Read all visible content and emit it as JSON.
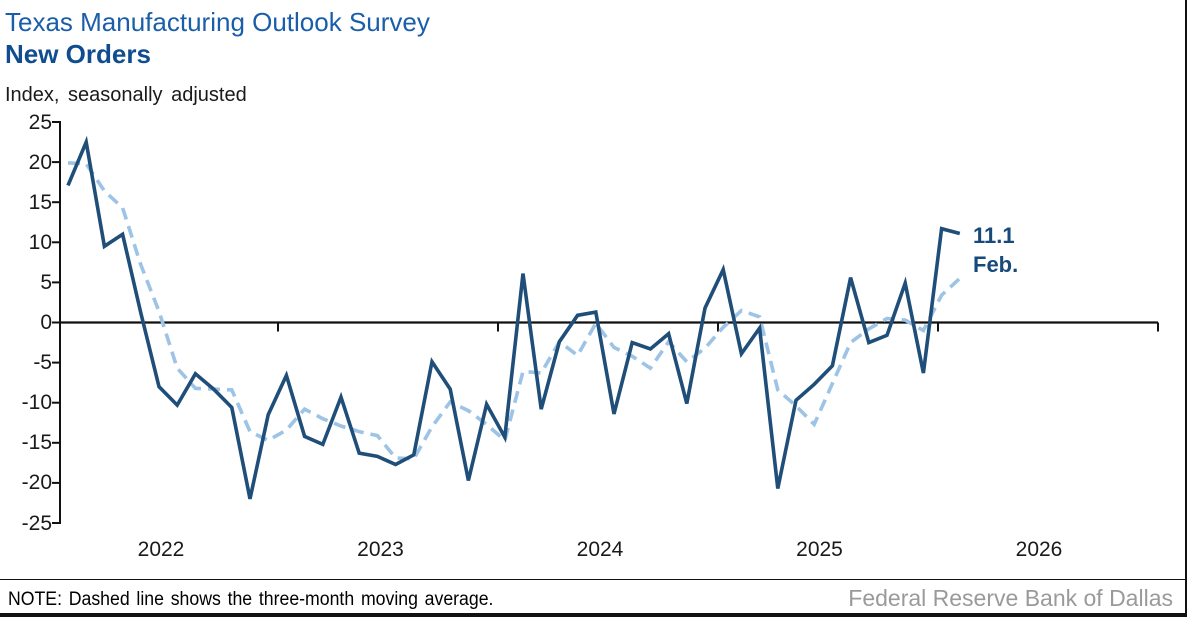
{
  "header": {
    "title": "Texas Manufacturing Outlook Survey",
    "subtitle": "New Orders",
    "unit_label": "Index, seasonally adjusted"
  },
  "annotation": {
    "value": "11.1",
    "month": "Feb."
  },
  "footer": {
    "note": "NOTE: Dashed line shows the three-month moving average.",
    "attribution": "Federal Reserve Bank of Dallas"
  },
  "colors": {
    "title_blue": "#1a5ea9",
    "subtitle_navy": "#0f4d8e",
    "monthly_line_navy": "#1f4e79",
    "moving_average_light_blue": "#9dc3e6",
    "axis_black": "#111111",
    "attribution_gray": "#9a9a9a"
  },
  "chart_data": {
    "type": "line",
    "title": "Texas Manufacturing Outlook Survey — New Orders",
    "ylabel": "Index, seasonally adjusted",
    "ylim": [
      -25,
      25
    ],
    "y_ticks": [
      25,
      20,
      15,
      10,
      5,
      0,
      -5,
      -10,
      -15,
      -20,
      -25
    ],
    "x_tick_labels": [
      "2022",
      "2023",
      "2024",
      "2025",
      "2026"
    ],
    "x_start_month": "Jan 2022",
    "x_end_month": "Feb 2026",
    "frequency": "monthly",
    "grid": false,
    "legend_position": "none (explained in footer note)",
    "latest_point": {
      "label": "Feb.",
      "value": 11.1
    },
    "series": [
      {
        "name": "New orders index (monthly)",
        "style": "solid",
        "color": "#1f4e79",
        "values": [
          17.1,
          22.5,
          9.5,
          11.0,
          1.2,
          -8.0,
          -10.3,
          -6.4,
          -8.3,
          -10.6,
          -22.0,
          -11.5,
          -6.6,
          -14.2,
          -15.2,
          -9.3,
          -16.3,
          -16.7,
          -17.7,
          -16.5,
          -4.9,
          -8.3,
          -19.7,
          -10.2,
          -14.3,
          6.1,
          -10.8,
          -2.4,
          0.9,
          1.3,
          -11.4,
          -2.5,
          -3.3,
          -1.4,
          -10.1,
          1.8,
          6.6,
          -3.9,
          -0.7,
          -20.7,
          -9.7,
          -7.7,
          -5.4,
          5.6,
          -2.5,
          -1.6,
          4.9,
          -6.3,
          11.7,
          11.1
        ]
      },
      {
        "name": "Three-month moving average",
        "style": "dashed",
        "color": "#9dc3e6",
        "values": [
          19.9,
          19.8,
          16.4,
          14.3,
          7.2,
          1.4,
          -5.7,
          -8.2,
          -8.3,
          -8.4,
          -13.6,
          -14.7,
          -13.4,
          -10.8,
          -12.0,
          -12.9,
          -13.6,
          -14.1,
          -16.9,
          -17.0,
          -13.0,
          -9.9,
          -11.0,
          -12.7,
          -14.7,
          -6.1,
          -6.3,
          -2.4,
          -4.1,
          -0.1,
          -3.1,
          -4.2,
          -5.7,
          -2.4,
          -4.9,
          -3.2,
          -0.6,
          1.5,
          0.7,
          -8.4,
          -10.4,
          -12.7,
          -7.6,
          -2.5,
          -0.8,
          0.5,
          0.3,
          -1.0,
          3.4,
          5.5
        ]
      }
    ]
  }
}
